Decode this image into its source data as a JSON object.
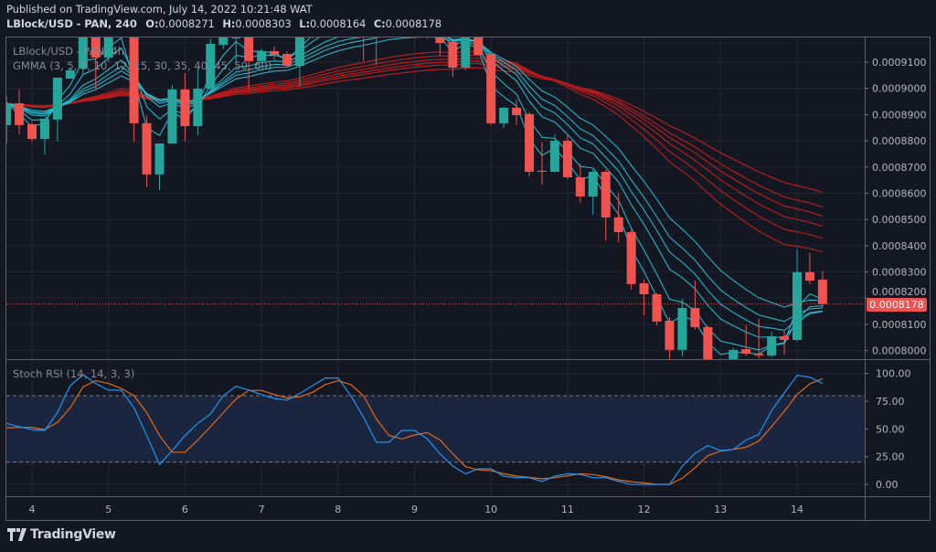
{
  "header": {
    "published": "Published on TradingView.com, July 14, 2022 10:21:48 WAT",
    "symbol": "LBlock/USD - PAN, 240",
    "ohlc": [
      {
        "key": "O:",
        "value": "0.0008271"
      },
      {
        "key": "H:",
        "value": "0.0008303"
      },
      {
        "key": "L:",
        "value": "0.0008164"
      },
      {
        "key": "C:",
        "value": "0.0008178"
      }
    ]
  },
  "legend": {
    "symbol": "LBlock/USD - PAN, 4h",
    "gmma": "GMMA (3, 5, 8, 10, 12, 15, 30, 35, 40, 45, 50, 60)",
    "stoch": "Stoch RSI (14, 14, 3, 3)"
  },
  "logo": "TradingView",
  "colors": {
    "up": "#26a69a",
    "down": "#ef5350",
    "gmma_short": "#26c6da",
    "gmma_long": "#b71c1c",
    "stoch_k": "#2196f3",
    "stoch_d": "#e8690f",
    "background": "#131722",
    "grid": "#232733",
    "band": "#1a2540"
  },
  "chart_data": [
    {
      "type": "candlestick",
      "interval": "240",
      "current_price": "0.0008178",
      "y_ticks": [
        "0.0009100",
        "0.0009000",
        "0.0008900",
        "0.0008800",
        "0.0008700",
        "0.0008600",
        "0.0008500",
        "0.0008400",
        "0.0008300",
        "0.0008200",
        "0.0008100",
        "0.0008000"
      ],
      "x_ticks": [
        "4",
        "5",
        "6",
        "7",
        "8",
        "9",
        "10",
        "11",
        "12",
        "13",
        "14"
      ],
      "gmma_short_periods": [
        3,
        5,
        8,
        10,
        12,
        15
      ],
      "gmma_long_periods": [
        30,
        35,
        40,
        45,
        50,
        60
      ],
      "candles": [
        [
          "2022-07-03 16:00",
          0.000886,
          0.0008971,
          0.000879,
          0.0008943
        ],
        [
          "2022-07-03 20:00",
          0.0008943,
          0.0008996,
          0.0008825,
          0.000886
        ],
        [
          "2022-07-04 00:00",
          0.0008863,
          0.0008871,
          0.0008797,
          0.0008807
        ],
        [
          "2022-07-04 04:00",
          0.0008807,
          0.0008884,
          0.0008748,
          0.0008884
        ],
        [
          "2022-07-04 08:00",
          0.0008881,
          0.0009041,
          0.0008797,
          0.0009041
        ],
        [
          "2022-07-04 12:00",
          0.0009037,
          0.000908,
          0.0009037,
          0.0009069
        ],
        [
          "2022-07-04 16:00",
          0.0009076,
          0.000922,
          0.000905,
          0.00092
        ],
        [
          "2022-07-04 20:00",
          0.00092,
          0.000922,
          0.0008999,
          0.0009118
        ],
        [
          "2022-07-05 00:00",
          0.0009118,
          0.000922,
          0.00091,
          0.00092
        ],
        [
          "2022-07-05 04:00",
          0.000921,
          0.000924,
          0.00092,
          0.000923
        ],
        [
          "2022-07-05 08:00",
          0.000922,
          0.000923,
          0.0008797,
          0.0008867
        ],
        [
          "2022-07-05 12:00",
          0.0008867,
          0.0008895,
          0.0008623,
          0.0008672
        ],
        [
          "2022-07-05 16:00",
          0.0008672,
          0.000879,
          0.0008612,
          0.000879
        ],
        [
          "2022-07-05 20:00",
          0.000879,
          0.0009013,
          0.000879,
          0.0008996
        ],
        [
          "2022-07-06 00:00",
          0.0008996,
          0.0009058,
          0.00088,
          0.0008856
        ],
        [
          "2022-07-06 04:00",
          0.0008856,
          0.0009076,
          0.0008821,
          0.0008999
        ],
        [
          "2022-07-06 08:00",
          0.0008999,
          0.000919,
          0.000898,
          0.000917
        ],
        [
          "2022-07-06 12:00",
          0.0009166,
          0.0009215,
          0.000915,
          0.0009198
        ],
        [
          "2022-07-06 16:00",
          0.0009191,
          0.000924,
          0.00091,
          0.000923
        ],
        [
          "2022-07-06 20:00",
          0.00092,
          0.000923,
          0.0008999,
          0.0009104
        ],
        [
          "2022-07-07 00:00",
          0.0009104,
          0.000915,
          0.00091,
          0.0009142
        ],
        [
          "2022-07-07 04:00",
          0.0009142,
          0.000916,
          0.000911,
          0.0009128
        ],
        [
          "2022-07-07 08:00",
          0.0009131,
          0.000914,
          0.000908,
          0.0009086
        ],
        [
          "2022-07-07 12:00",
          0.0009086,
          0.000922,
          0.0009006,
          0.00092
        ],
        [
          "2022-07-07 16:00",
          0.00092,
          0.000927,
          0.000919,
          0.000925
        ],
        [
          "2022-07-07 20:00",
          0.000925,
          0.000929,
          0.000923,
          0.000927
        ],
        [
          "2022-07-08 00:00",
          0.000927,
          0.00093,
          0.000924,
          0.000926
        ],
        [
          "2022-07-08 04:00",
          0.000926,
          0.000928,
          0.000922,
          0.000924
        ],
        [
          "2022-07-08 08:00",
          0.000925,
          0.000926,
          0.0009104,
          0.000923
        ],
        [
          "2022-07-08 12:00",
          0.000923,
          0.000926,
          0.000909,
          0.000925
        ],
        [
          "2022-07-08 16:00",
          0.000925,
          0.000928,
          0.000922,
          0.000926
        ],
        [
          "2022-07-08 20:00",
          0.000926,
          0.000927,
          0.00092,
          0.000923
        ],
        [
          "2022-07-09 00:00",
          0.000923,
          0.000925,
          0.000919,
          0.000922
        ],
        [
          "2022-07-09 04:00",
          0.000922,
          0.000924,
          0.000919,
          0.000921
        ],
        [
          "2022-07-09 08:00",
          0.0009198,
          0.0009215,
          0.0009124,
          0.0009173
        ],
        [
          "2022-07-09 12:00",
          0.0009177,
          0.000919,
          0.0009044,
          0.0009079
        ],
        [
          "2022-07-09 16:00",
          0.0009079,
          0.000922,
          0.000907,
          0.000921
        ],
        [
          "2022-07-09 20:00",
          0.000921,
          0.000922,
          0.0009124,
          0.0009128
        ],
        [
          "2022-07-10 00:00",
          0.0009131,
          0.000914,
          0.000886,
          0.0008867
        ],
        [
          "2022-07-10 04:00",
          0.0008867,
          0.000893,
          0.0008849,
          0.0008926
        ],
        [
          "2022-07-10 08:00",
          0.0008926,
          0.0008957,
          0.000886,
          0.0008898
        ],
        [
          "2022-07-10 12:00",
          0.0008902,
          0.000891,
          0.0008665,
          0.0008682
        ],
        [
          "2022-07-10 16:00",
          0.0008686,
          0.0008794,
          0.0008633,
          0.0008682
        ],
        [
          "2022-07-10 20:00",
          0.0008682,
          0.0008825,
          0.000868,
          0.00088
        ],
        [
          "2022-07-11 00:00",
          0.00088,
          0.0008825,
          0.0008654,
          0.0008661
        ],
        [
          "2022-07-11 04:00",
          0.0008661,
          0.0008713,
          0.0008564,
          0.0008588
        ],
        [
          "2022-07-11 08:00",
          0.0008588,
          0.000869,
          0.0008518,
          0.0008682
        ],
        [
          "2022-07-11 12:00",
          0.0008682,
          0.000869,
          0.0008421,
          0.0008508
        ],
        [
          "2022-07-11 16:00",
          0.0008508,
          0.0008602,
          0.0008414,
          0.0008452
        ],
        [
          "2022-07-11 20:00",
          0.0008452,
          0.000846,
          0.0008233,
          0.0008254
        ],
        [
          "2022-07-12 00:00",
          0.0008257,
          0.0008271,
          0.0008135,
          0.0008215
        ],
        [
          "2022-07-12 04:00",
          0.0008215,
          0.000822,
          0.0008097,
          0.0008111
        ],
        [
          "2022-07-12 08:00",
          0.0008114,
          0.0008128,
          0.0007961,
          0.0008003
        ],
        [
          "2022-07-12 12:00",
          0.0008003,
          0.0008198,
          0.0007978,
          0.0008163
        ],
        [
          "2022-07-12 16:00",
          0.0008163,
          0.0008267,
          0.000808,
          0.000809
        ],
        [
          "2022-07-12 20:00",
          0.000809,
          0.0008095,
          0.000793,
          0.000795
        ],
        [
          "2022-07-13 00:00",
          0.000795,
          0.0007965,
          0.00079,
          0.000794
        ],
        [
          "2022-07-13 04:00",
          0.0007961,
          0.000801,
          0.000795,
          0.0008003
        ],
        [
          "2022-07-13 08:00",
          0.0008006,
          0.0008097,
          0.000798,
          0.0007989
        ],
        [
          "2022-07-13 12:00",
          0.0007989,
          0.0008121,
          0.000797,
          0.0007982
        ],
        [
          "2022-07-13 16:00",
          0.0007982,
          0.0008072,
          0.0007975,
          0.0008055
        ],
        [
          "2022-07-13 20:00",
          0.0008055,
          0.0008076,
          0.0007985,
          0.0008041
        ],
        [
          "2022-07-14 00:00",
          0.0008041,
          0.0008386,
          0.0008035,
          0.0008299
        ],
        [
          "2022-07-14 04:00",
          0.0008299,
          0.0008372,
          0.0008254,
          0.0008267
        ],
        [
          "2022-07-14 08:00",
          0.0008271,
          0.0008303,
          0.0008164,
          0.0008178
        ]
      ]
    },
    {
      "type": "line",
      "y_ticks": [
        "100.00",
        "75.00",
        "50.00",
        "25.00",
        "0.00"
      ],
      "ylim": [
        0,
        100
      ],
      "bands": [
        20,
        80
      ],
      "k": [
        55,
        52,
        49.5,
        48.6,
        65,
        89,
        99,
        91,
        85,
        85,
        69,
        44,
        18,
        30.5,
        44,
        55,
        63.5,
        80,
        88.5,
        85,
        81,
        77.5,
        76,
        82,
        89,
        96,
        96,
        80,
        60.5,
        38,
        38,
        48.6,
        48.6,
        41,
        27.5,
        16.5,
        9.6,
        14,
        14,
        7.4,
        6,
        6,
        2.7,
        7.4,
        9.6,
        9,
        6,
        6,
        2.7,
        0,
        0,
        0,
        0,
        16.5,
        28,
        35,
        30.5,
        31.6,
        40,
        45,
        66.5,
        82.5,
        98.4,
        96.7,
        91
      ],
      "d": [
        51,
        51.4,
        51.4,
        49.5,
        56,
        69,
        88,
        93.5,
        91,
        86.6,
        80,
        64.6,
        44,
        29,
        29,
        40,
        52,
        64.6,
        77,
        84.7,
        84.7,
        81,
        78,
        79,
        83,
        90,
        93.5,
        90,
        80,
        59,
        44,
        41,
        44.5,
        46.7,
        40,
        27.5,
        16,
        13,
        12.4,
        9.6,
        7.5,
        6.3,
        5,
        6,
        7.7,
        9.6,
        8.8,
        6.9,
        4,
        2.5,
        1.4,
        0,
        0,
        5.5,
        15,
        26,
        30,
        31.6,
        33.5,
        39,
        52,
        66,
        81,
        90.7,
        95.4
      ]
    }
  ]
}
